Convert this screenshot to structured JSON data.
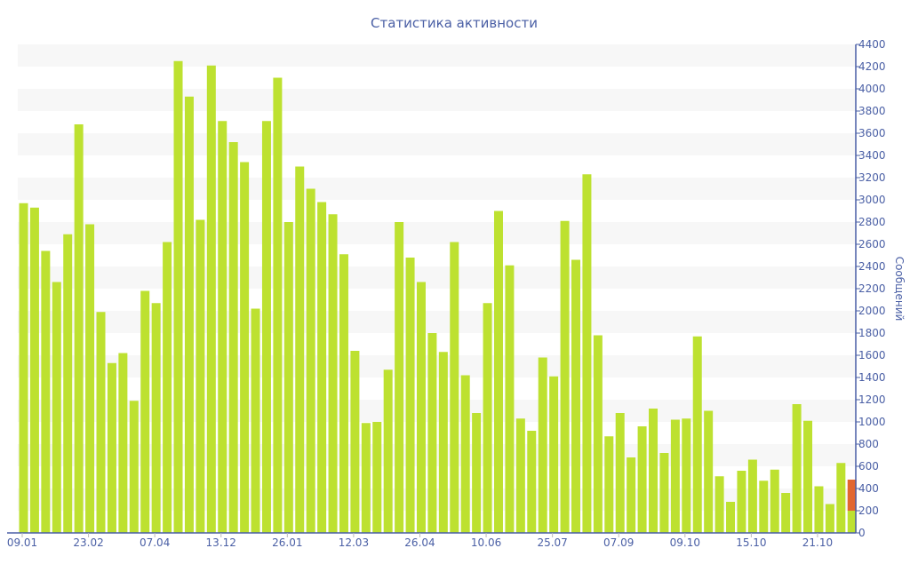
{
  "chart_data": {
    "type": "bar",
    "title": "Статистика активности",
    "ylabel": "Сообщений",
    "xlabel": "",
    "ylim": [
      0,
      4400
    ],
    "ytick_step": 200,
    "grid": "alternating horizontal bands",
    "x_tick_labels": [
      "09.01",
      "23.02",
      "07.04",
      "13.12",
      "26.01",
      "12.03",
      "26.04",
      "10.06",
      "25.07",
      "07.09",
      "09.10",
      "15.10",
      "21.10"
    ],
    "x_tick_every": 6,
    "colors": {
      "primary": "#bde130",
      "secondary": "#e2662f",
      "axis": "#4a5fa5",
      "band": "#f7f7f7"
    },
    "series": [
      {
        "name": "primary",
        "values": [
          2970,
          2930,
          2540,
          2260,
          2690,
          3680,
          2780,
          1990,
          1530,
          1620,
          1190,
          2180,
          2070,
          2620,
          4250,
          3930,
          2820,
          4210,
          3710,
          3520,
          3340,
          2020,
          3710,
          4100,
          2800,
          3300,
          3100,
          2980,
          2870,
          2510,
          1640,
          990,
          1000,
          1470,
          2800,
          2480,
          2260,
          1800,
          1630,
          2620,
          1420,
          1080,
          2070,
          2900,
          2410,
          1030,
          920,
          1580,
          1410,
          2810,
          2460,
          3230,
          1780,
          870,
          1080,
          680,
          960,
          1120,
          720,
          1020,
          1030,
          1770,
          1100,
          510,
          280,
          560,
          660,
          470,
          570,
          360,
          1160,
          1010,
          420,
          260,
          630,
          200
        ]
      },
      {
        "name": "secondary",
        "values": [
          0,
          0,
          0,
          0,
          0,
          0,
          0,
          0,
          0,
          0,
          0,
          0,
          0,
          0,
          0,
          0,
          0,
          0,
          0,
          0,
          0,
          0,
          0,
          0,
          0,
          0,
          0,
          0,
          0,
          0,
          0,
          0,
          0,
          0,
          0,
          0,
          0,
          0,
          0,
          0,
          0,
          0,
          0,
          0,
          0,
          0,
          0,
          0,
          0,
          0,
          0,
          0,
          0,
          0,
          0,
          0,
          0,
          0,
          0,
          0,
          0,
          0,
          0,
          0,
          0,
          0,
          0,
          0,
          0,
          0,
          0,
          0,
          0,
          0,
          0,
          280
        ]
      }
    ]
  }
}
